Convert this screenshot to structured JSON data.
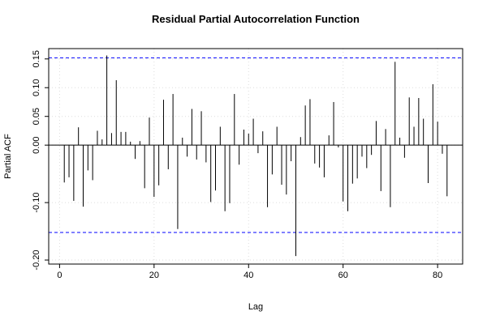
{
  "chart_data": {
    "type": "bar",
    "title": "Residual Partial Autocorrelation Function",
    "xlabel": "Lag",
    "ylabel": "Partial ACF",
    "x": [
      1,
      2,
      3,
      4,
      5,
      6,
      7,
      8,
      9,
      10,
      11,
      12,
      13,
      14,
      15,
      16,
      17,
      18,
      19,
      20,
      21,
      22,
      23,
      24,
      25,
      26,
      27,
      28,
      29,
      30,
      31,
      32,
      33,
      34,
      35,
      36,
      37,
      38,
      39,
      40,
      41,
      42,
      43,
      44,
      45,
      46,
      47,
      48,
      49,
      50,
      51,
      52,
      53,
      54,
      55,
      56,
      57,
      58,
      59,
      60,
      61,
      62,
      63,
      64,
      65,
      66,
      67,
      68,
      69,
      70,
      71,
      72,
      73,
      74,
      75,
      76,
      77,
      78,
      79,
      80,
      81,
      82
    ],
    "values": [
      -0.065,
      -0.056,
      -0.097,
      0.031,
      -0.107,
      -0.044,
      -0.061,
      0.025,
      0.01,
      0.156,
      0.021,
      0.113,
      0.023,
      0.023,
      0.006,
      -0.024,
      0.007,
      -0.075,
      0.048,
      -0.09,
      -0.07,
      0.079,
      -0.042,
      0.089,
      -0.146,
      0.013,
      -0.02,
      0.063,
      -0.025,
      0.059,
      -0.03,
      -0.099,
      -0.079,
      0.032,
      -0.115,
      -0.101,
      0.089,
      -0.034,
      0.027,
      0.02,
      0.046,
      -0.014,
      0.024,
      -0.108,
      -0.051,
      0.032,
      -0.069,
      -0.086,
      -0.028,
      -0.193,
      0.014,
      0.069,
      0.08,
      -0.032,
      -0.039,
      -0.056,
      0.017,
      0.075,
      -0.004,
      -0.098,
      -0.115,
      -0.067,
      -0.058,
      -0.02,
      -0.04,
      -0.017,
      0.042,
      -0.08,
      0.028,
      -0.108,
      0.145,
      0.013,
      -0.022,
      0.083,
      0.032,
      0.082,
      0.046,
      -0.066,
      0.106,
      0.041,
      -0.015,
      -0.089
    ],
    "color": "#000000",
    "conf_limits": [
      0.152,
      -0.152
    ],
    "conf_color": "#0000ff",
    "xlim": [
      -2.3,
      85.3
    ],
    "ylim": [
      -0.207,
      0.168
    ],
    "xticks": [
      0,
      20,
      40,
      60,
      80
    ],
    "yticks": [
      {
        "value": -0.2,
        "label": "-0.20"
      },
      {
        "value": -0.1,
        "label": "-0.10"
      },
      {
        "value": 0,
        "label": "0.00"
      },
      {
        "value": 0.05,
        "label": "0.05"
      },
      {
        "value": 0.1,
        "label": "0.10"
      },
      {
        "value": 0.15,
        "label": "0.15"
      }
    ],
    "grid": true
  }
}
